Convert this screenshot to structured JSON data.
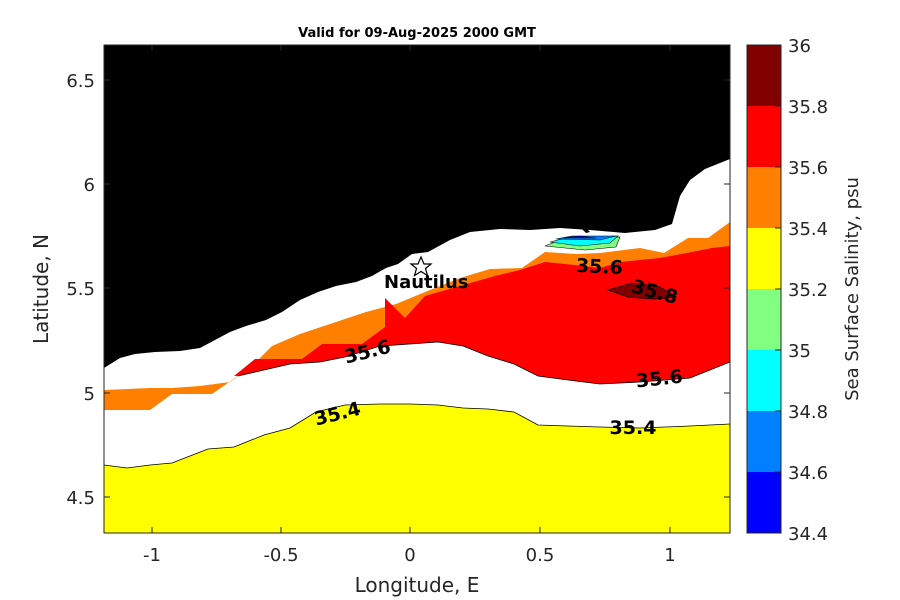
{
  "chart_data": {
    "type": "heatmap",
    "title": "Valid for 09-Aug-2025 2000 GMT",
    "xlabel": "Longitude, E",
    "ylabel": "Latitude, N",
    "xlim": [
      -1.2,
      1.22
    ],
    "ylim": [
      4.33,
      6.67
    ],
    "xticks": [
      "-1",
      "-0.5",
      "0",
      "0.5",
      "1"
    ],
    "yticks": [
      "4.5",
      "5",
      "5.5",
      "6",
      "6.5"
    ],
    "colorbar": {
      "label": "Sea Surface Salinity, psu",
      "range": [
        34.4,
        36
      ],
      "ticks": [
        "34.4",
        "34.6",
        "34.8",
        "35",
        "35.2",
        "35.4",
        "35.6",
        "35.8",
        "36"
      ],
      "colors": [
        "#0000ff",
        "#0080ff",
        "#00ffff",
        "#80ff80",
        "#ffff00",
        "#ff8000",
        "#ff0000",
        "#800000"
      ]
    },
    "land_color": "#000000",
    "contour_labels": [
      {
        "text": "35.6",
        "lon": 0.62,
        "lat": 5.6
      },
      {
        "text": "35.8",
        "lon": 0.93,
        "lat": 5.47
      },
      {
        "text": "35.6",
        "lon": -0.16,
        "lat": 5.2
      },
      {
        "text": "35.6",
        "lon": 0.96,
        "lat": 5.06
      },
      {
        "text": "35.4",
        "lon": -0.28,
        "lat": 4.88
      },
      {
        "text": "35.4",
        "lon": 0.85,
        "lat": 4.82
      }
    ],
    "marker": {
      "label": "Nautilus",
      "lon": 0.04,
      "lat": 5.59,
      "symbol": "star"
    }
  }
}
